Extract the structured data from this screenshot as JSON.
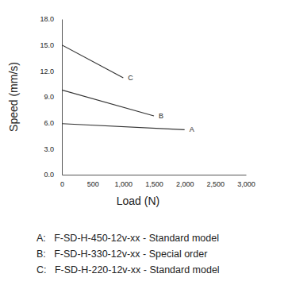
{
  "chart_data": {
    "type": "line",
    "x_label": "Load (N)",
    "y_label": "Speed (mm/s)",
    "series": [
      {
        "name": "A",
        "color": "#333333",
        "x": [
          0,
          2000
        ],
        "values": [
          5.9,
          5.2
        ]
      },
      {
        "name": "B",
        "color": "#333333",
        "x": [
          0,
          1500
        ],
        "values": [
          9.8,
          6.8
        ]
      },
      {
        "name": "C",
        "color": "#333333",
        "x": [
          0,
          1000
        ],
        "values": [
          15.0,
          11.2
        ]
      }
    ],
    "xlim": [
      0,
      3000
    ],
    "xticks": [
      0,
      500,
      {
        "value": 1000,
        "label": "1,000"
      },
      {
        "value": 1500,
        "label": "1,500"
      },
      {
        "value": 2000,
        "label": "2,000"
      },
      {
        "value": 2500,
        "label": "2,500"
      },
      {
        "value": 3000,
        "label": "3,000"
      }
    ],
    "ylim": [
      0,
      18
    ],
    "yticks": [
      {
        "value": 0,
        "label": "0.0"
      },
      {
        "value": 3,
        "label": "3.0"
      },
      {
        "value": 6,
        "label": "6.0"
      },
      {
        "value": 9,
        "label": "9.0"
      },
      {
        "value": 12,
        "label": "12.0"
      },
      {
        "value": 15,
        "label": "15.0"
      },
      {
        "value": 18,
        "label": "18.0"
      }
    ],
    "grid": false,
    "annotations": [
      "A:   F-SD-H-450-12v-xx - Standard model",
      "B:   F-SD-H-330-12v-xx - Special order",
      "C:   F-SD-H-220-12v-xx - Standard model"
    ]
  }
}
